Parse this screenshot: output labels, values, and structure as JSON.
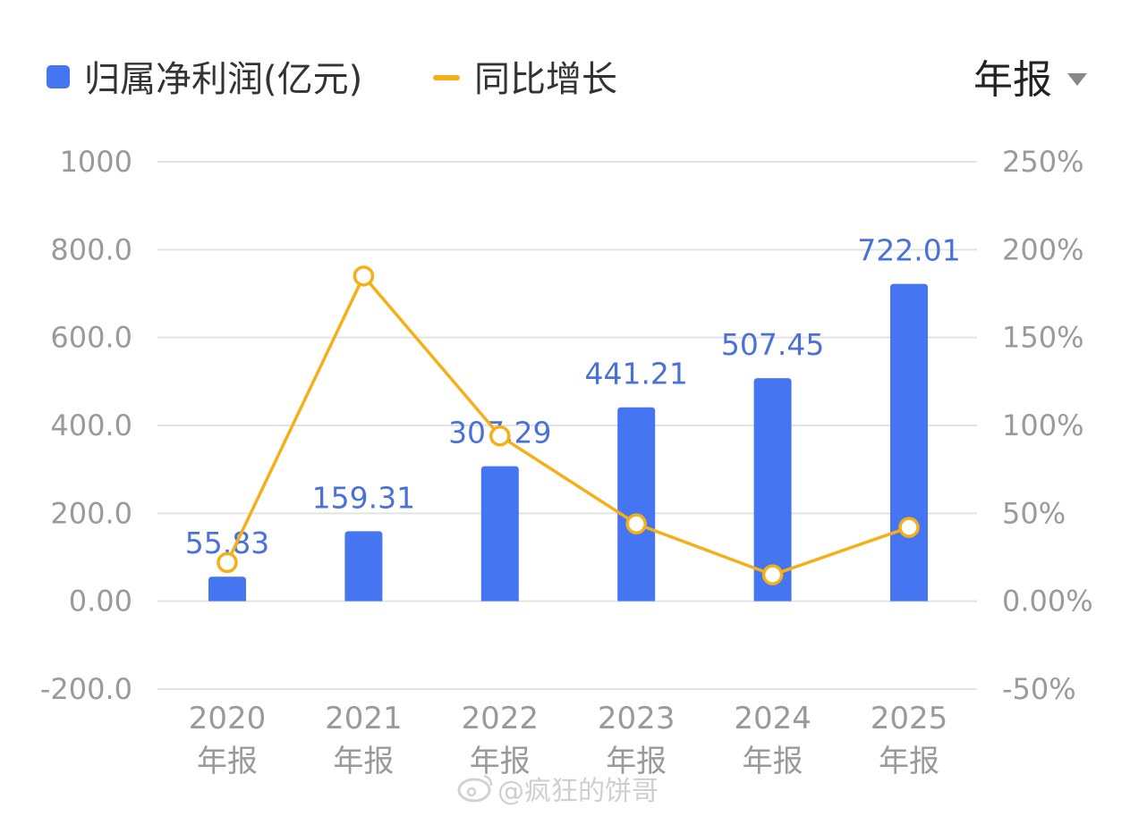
{
  "legend": {
    "bar_label": "归属净利润(亿元)",
    "line_label": "同比增长"
  },
  "period_selector": {
    "label": "年报",
    "icon": "caret-down-icon"
  },
  "watermark": "@疯狂的饼哥",
  "colors": {
    "bar": "#4675f2",
    "line": "#f5b019",
    "bar_label": "#4a72d6",
    "axis_text": "#9a9a9a"
  },
  "chart_data": {
    "type": "bar",
    "categories": [
      "2020\n年报",
      "2021\n年报",
      "2022\n年报",
      "2023\n年报",
      "2024\n年报",
      "2025\n年报"
    ],
    "series": [
      {
        "name": "归属净利润(亿元)",
        "type": "bar",
        "axis": "left",
        "values": [
          55.83,
          159.31,
          307.29,
          441.21,
          507.45,
          722.01
        ],
        "labels": [
          "55.83",
          "159.31",
          "307.29",
          "441.21",
          "507.45",
          "722.01"
        ]
      },
      {
        "name": "同比增长",
        "type": "line",
        "axis": "right",
        "values": [
          22,
          185,
          94,
          44,
          15,
          42
        ]
      }
    ],
    "y_left": {
      "ylim": [
        -200,
        1000
      ],
      "ticks": [
        1000,
        800,
        600,
        400,
        200,
        0,
        -200
      ],
      "tick_labels": [
        "1000",
        "800.0",
        "600.0",
        "400.0",
        "200.0",
        "0.00",
        "-200.0"
      ]
    },
    "y_right": {
      "ylim": [
        -50,
        250
      ],
      "ticks": [
        250,
        200,
        150,
        100,
        50,
        0,
        -50
      ],
      "tick_labels": [
        "250%",
        "200%",
        "150%",
        "100%",
        "50%",
        "0.00%",
        "-50%"
      ]
    },
    "grid": true,
    "legend_position": "top-left"
  }
}
